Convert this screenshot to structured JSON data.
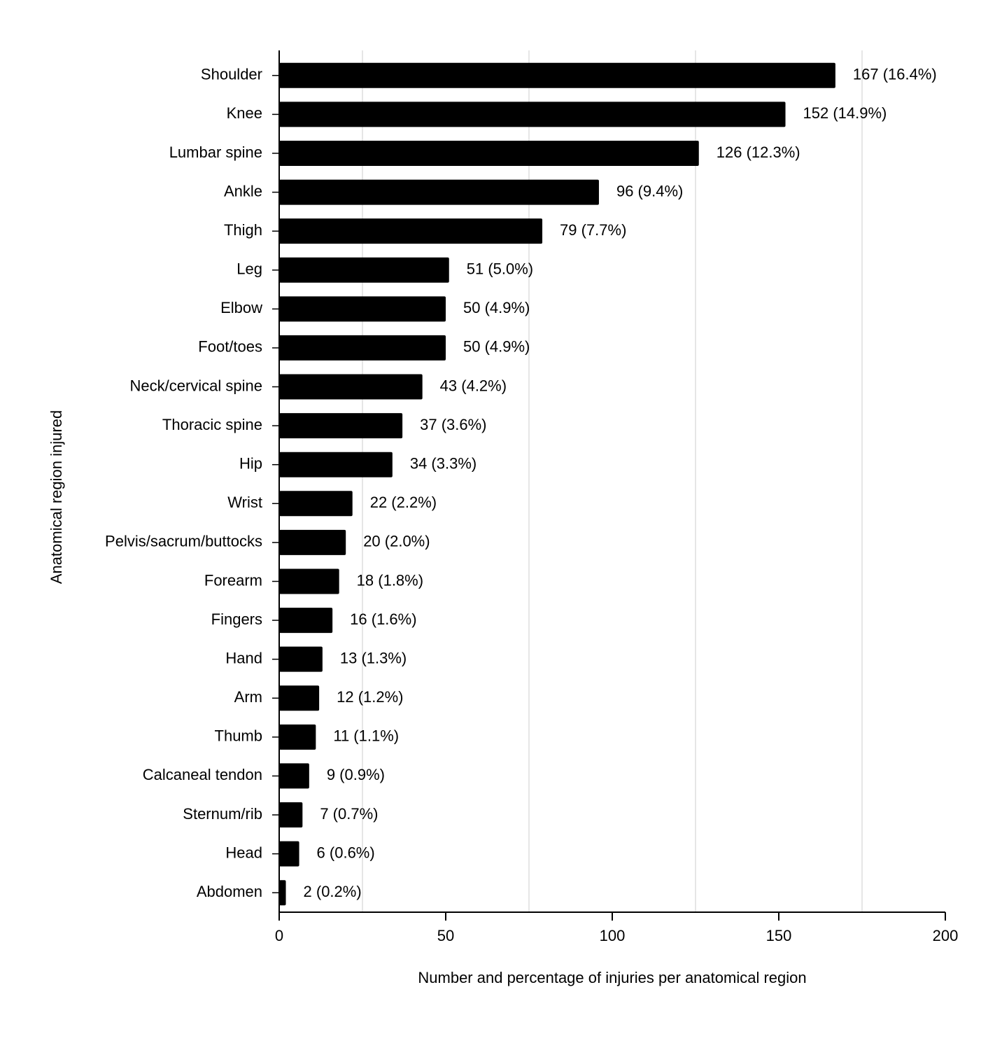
{
  "chart_data": {
    "type": "bar",
    "orientation": "horizontal",
    "xlabel": "Number and percentage of injuries per anatomical region",
    "ylabel": "Anatomical region injured",
    "categories": [
      "Shoulder",
      "Knee",
      "Lumbar spine",
      "Ankle",
      "Thigh",
      "Leg",
      "Elbow",
      "Foot/toes",
      "Neck/cervical spine",
      "Thoracic spine",
      "Hip",
      "Wrist",
      "Pelvis/sacrum/buttocks",
      "Forearm",
      "Fingers",
      "Hand",
      "Arm",
      "Thumb",
      "Calcaneal tendon",
      "Sternum/rib",
      "Head",
      "Abdomen"
    ],
    "values": [
      167,
      152,
      126,
      96,
      79,
      51,
      50,
      50,
      43,
      37,
      34,
      22,
      20,
      18,
      16,
      13,
      12,
      11,
      9,
      7,
      6,
      2
    ],
    "value_labels": [
      "167 (16.4%)",
      "152 (14.9%)",
      "126 (12.3%)",
      "96 (9.4%)",
      "79 (7.7%)",
      "51 (5.0%)",
      "50 (4.9%)",
      "50 (4.9%)",
      "43 (4.2%)",
      "37 (3.6%)",
      "34 (3.3%)",
      "22 (2.2%)",
      "20 (2.0%)",
      "18 (1.8%)",
      "16 (1.6%)",
      "13 (1.3%)",
      "12 (1.2%)",
      "11 (1.1%)",
      "9 (0.9%)",
      "7 (0.7%)",
      "6 (0.6%)",
      "2 (0.2%)"
    ],
    "color": "#000000",
    "xlim": [
      0,
      200
    ],
    "xticks": [
      0,
      50,
      100,
      150,
      200
    ],
    "xminor_grid": [
      25,
      75,
      125,
      175
    ],
    "grid": true
  }
}
